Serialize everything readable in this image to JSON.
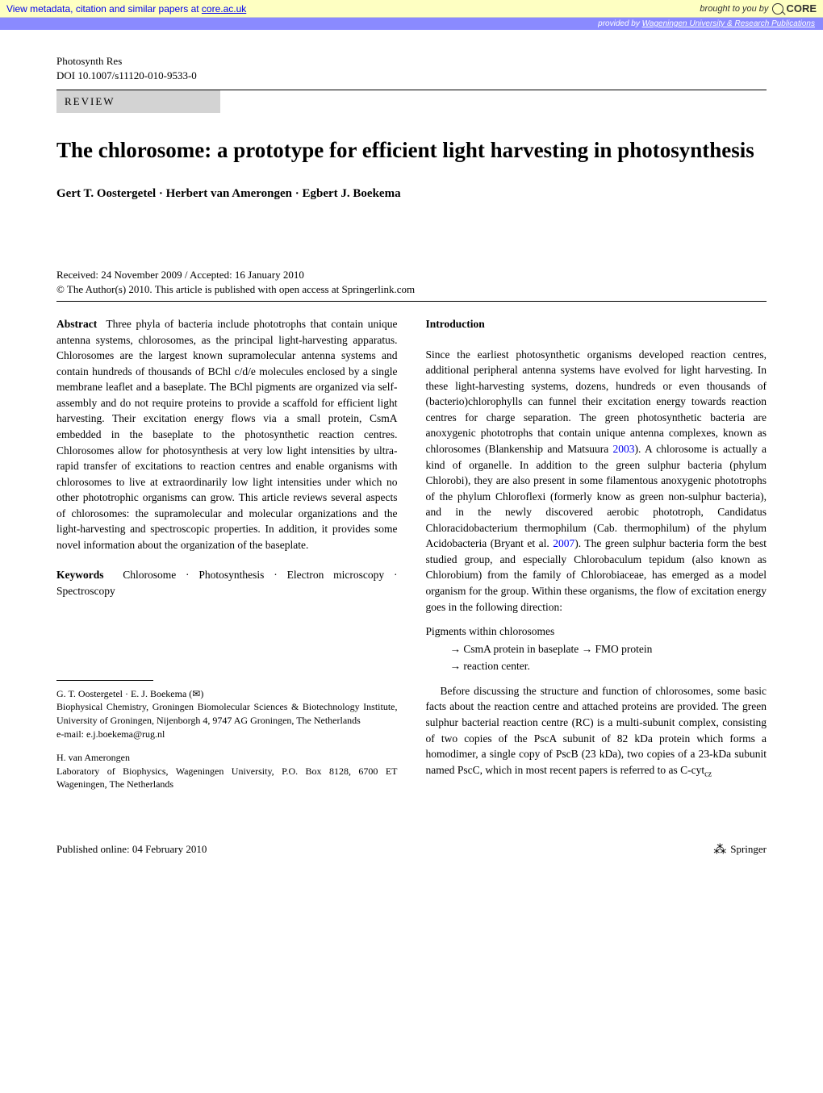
{
  "coreBanner": {
    "leftText": "View metadata, citation and similar papers at ",
    "leftLink": "core.ac.uk",
    "rightText": "brought to you by ",
    "logoText": "CORE"
  },
  "providedBanner": {
    "prefix": "provided by ",
    "source": "Wageningen University & Research Publications"
  },
  "journal": {
    "name": "Photosynth Res",
    "doi": "DOI 10.1007/s11120-010-9533-0"
  },
  "articleType": "REVIEW",
  "title": "The chlorosome: a prototype for efficient light harvesting in photosynthesis",
  "authors": "Gert T. Oostergetel · Herbert van Amerongen · Egbert J. Boekema",
  "dates": {
    "received": "Received: 24 November 2009 / Accepted: 16 January 2010",
    "copyright": "© The Author(s) 2010. This article is published with open access at Springerlink.com"
  },
  "abstract": {
    "label": "Abstract",
    "text": "Three phyla of bacteria include phototrophs that contain unique antenna systems, chlorosomes, as the principal light-harvesting apparatus. Chlorosomes are the largest known supramolecular antenna systems and contain hundreds of thousands of BChl c/d/e molecules enclosed by a single membrane leaflet and a baseplate. The BChl pigments are organized via self-assembly and do not require proteins to provide a scaffold for efficient light harvesting. Their excitation energy flows via a small protein, CsmA embedded in the baseplate to the photosynthetic reaction centres. Chlorosomes allow for photosynthesis at very low light intensities by ultra-rapid transfer of excitations to reaction centres and enable organisms with chlorosomes to live at extraordinarily low light intensities under which no other phototrophic organisms can grow. This article reviews several aspects of chlorosomes: the supramolecular and molecular organizations and the light-harvesting and spectroscopic properties. In addition, it provides some novel information about the organization of the baseplate."
  },
  "keywords": {
    "label": "Keywords",
    "text": "Chlorosome · Photosynthesis · Electron microscopy · Spectroscopy"
  },
  "affiliations": {
    "corresponding": "G. T. Oostergetel · E. J. Boekema (✉)",
    "affil1": "Biophysical Chemistry, Groningen Biomolecular Sciences & Biotechnology Institute, University of Groningen, Nijenborgh 4, 9747 AG Groningen, The Netherlands",
    "email": "e-mail: e.j.boekema@rug.nl",
    "author2": "H. van Amerongen",
    "affil2": "Laboratory of Biophysics, Wageningen University, P.O. Box 8128, 6700 ET Wageningen, The Netherlands"
  },
  "introduction": {
    "heading": "Introduction",
    "para1a": "Since the earliest photosynthetic organisms developed reaction centres, additional peripheral antenna systems have evolved for light harvesting. In these light-harvesting systems, dozens, hundreds or even thousands of (bacterio)chlorophylls can funnel their excitation energy towards reaction centres for charge separation. The green photosynthetic bacteria are anoxygenic phototrophs that contain unique antenna complexes, known as chlorosomes (Blankenship and Matsuura ",
    "ref1": "2003",
    "para1b": "). A chlorosome is actually a kind of organelle. In addition to the green sulphur bacteria (phylum Chlorobi), they are also present in some filamentous anoxygenic phototrophs of the phylum Chloroflexi (formerly know as green non-sulphur bacteria), and in the newly discovered aerobic phototroph, Candidatus Chloracidobacterium thermophilum (Cab. thermophilum) of the phylum Acidobacteria (Bryant et al. ",
    "ref2": "2007",
    "para1c": "). The green sulphur bacteria form the best studied group, and especially Chlorobaculum tepidum (also known as Chlorobium) from the family of Chlorobiaceae, has emerged as a model organism for the group. Within these organisms, the flow of excitation energy goes in the following direction:",
    "flow1": "Pigments within chlorosomes",
    "flow2": "→  CsmA protein in baseplate  →  FMO protein",
    "flow3": "→  reaction center.",
    "para2": "Before discussing the structure and function of chlorosomes, some basic facts about the reaction centre and attached proteins are provided. The green sulphur bacterial reaction centre (RC) is a multi-subunit complex, consisting of two copies of the PscA subunit of 82 kDa protein which forms a homodimer, a single copy of PscB (23 kDa), two copies of a 23-kDa subunit named PscC, which in most recent papers is referred to as C-cyt",
    "para2sub": "cz"
  },
  "footer": {
    "published": "Published online: 04 February 2010",
    "publisher": "Springer"
  }
}
